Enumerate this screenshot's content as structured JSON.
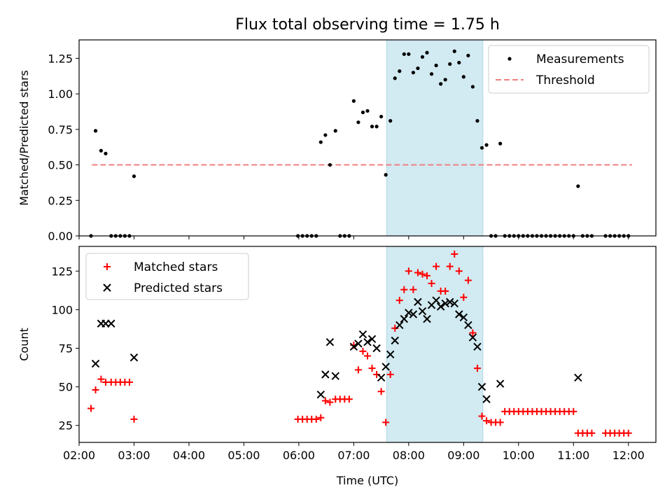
{
  "title": "Flux total observing time = 1.75 h",
  "chart_data": [
    {
      "type": "scatter",
      "ylabel": "Matched/Predicted stars",
      "xlabel": "",
      "xlim": [
        "02:00",
        "12:30"
      ],
      "ylim": [
        0,
        1.38
      ],
      "x_ticks": [
        "02:00",
        "03:00",
        "04:00",
        "05:00",
        "06:00",
        "07:00",
        "08:00",
        "09:00",
        "10:00",
        "11:00",
        "12:00"
      ],
      "y_ticks": [
        "0.00",
        "0.25",
        "0.50",
        "0.75",
        "1.00",
        "1.25"
      ],
      "shaded_region": [
        "07:36",
        "09:21"
      ],
      "shade_color": "#add8e6",
      "legend_position": "top-right",
      "threshold": {
        "name": "Threshold",
        "value": 0.5,
        "x_range": [
          "02:14",
          "12:04"
        ],
        "color": "#f08080"
      },
      "series": [
        {
          "name": "Measurements",
          "color": "#000000",
          "points": [
            [
              "02:13",
              0.0
            ],
            [
              "02:18",
              0.74
            ],
            [
              "02:24",
              0.6
            ],
            [
              "02:29",
              0.58
            ],
            [
              "02:35",
              0.0
            ],
            [
              "02:40",
              0.0
            ],
            [
              "02:45",
              0.0
            ],
            [
              "02:50",
              0.0
            ],
            [
              "02:55",
              0.0
            ],
            [
              "03:00",
              0.42
            ],
            [
              "05:59",
              0.0
            ],
            [
              "06:04",
              0.0
            ],
            [
              "06:09",
              0.0
            ],
            [
              "06:14",
              0.0
            ],
            [
              "06:19",
              0.0
            ],
            [
              "06:24",
              0.66
            ],
            [
              "06:29",
              0.71
            ],
            [
              "06:34",
              0.5
            ],
            [
              "06:40",
              0.74
            ],
            [
              "06:45",
              0.0
            ],
            [
              "06:50",
              0.0
            ],
            [
              "06:55",
              0.0
            ],
            [
              "07:00",
              0.95
            ],
            [
              "07:05",
              0.8
            ],
            [
              "07:10",
              0.87
            ],
            [
              "07:15",
              0.88
            ],
            [
              "07:20",
              0.77
            ],
            [
              "07:25",
              0.77
            ],
            [
              "07:30",
              0.84
            ],
            [
              "07:35",
              0.43
            ],
            [
              "07:40",
              0.81
            ],
            [
              "07:45",
              1.11
            ],
            [
              "07:50",
              1.16
            ],
            [
              "07:55",
              1.28
            ],
            [
              "08:00",
              1.28
            ],
            [
              "08:05",
              1.15
            ],
            [
              "08:10",
              1.18
            ],
            [
              "08:15",
              1.26
            ],
            [
              "08:20",
              1.29
            ],
            [
              "08:25",
              1.14
            ],
            [
              "08:30",
              1.2
            ],
            [
              "08:35",
              1.07
            ],
            [
              "08:40",
              1.1
            ],
            [
              "08:45",
              1.21
            ],
            [
              "08:50",
              1.3
            ],
            [
              "08:55",
              1.22
            ],
            [
              "09:00",
              1.12
            ],
            [
              "09:05",
              1.27
            ],
            [
              "09:10",
              1.05
            ],
            [
              "09:15",
              0.81
            ],
            [
              "09:20",
              0.62
            ],
            [
              "09:25",
              0.64
            ],
            [
              "09:30",
              0.0
            ],
            [
              "09:35",
              0.0
            ],
            [
              "09:40",
              0.65
            ],
            [
              "09:45",
              0.0
            ],
            [
              "09:50",
              0.0
            ],
            [
              "09:55",
              0.0
            ],
            [
              "10:00",
              0.0
            ],
            [
              "10:05",
              0.0
            ],
            [
              "10:10",
              0.0
            ],
            [
              "10:15",
              0.0
            ],
            [
              "10:20",
              0.0
            ],
            [
              "10:25",
              0.0
            ],
            [
              "10:30",
              0.0
            ],
            [
              "10:35",
              0.0
            ],
            [
              "10:40",
              0.0
            ],
            [
              "10:45",
              0.0
            ],
            [
              "10:50",
              0.0
            ],
            [
              "10:55",
              0.0
            ],
            [
              "11:00",
              0.0
            ],
            [
              "11:05",
              0.35
            ],
            [
              "11:10",
              0.0
            ],
            [
              "11:15",
              0.0
            ],
            [
              "11:20",
              0.0
            ],
            [
              "11:35",
              0.0
            ],
            [
              "11:40",
              0.0
            ],
            [
              "11:45",
              0.0
            ],
            [
              "11:50",
              0.0
            ],
            [
              "11:55",
              0.0
            ],
            [
              "12:00",
              0.0
            ]
          ]
        }
      ]
    },
    {
      "type": "scatter",
      "ylabel": "Count",
      "xlabel": "Time (UTC)",
      "xlim": [
        "02:00",
        "12:30"
      ],
      "ylim": [
        14,
        141
      ],
      "x_ticks": [
        "02:00",
        "03:00",
        "04:00",
        "05:00",
        "06:00",
        "07:00",
        "08:00",
        "09:00",
        "10:00",
        "11:00",
        "12:00"
      ],
      "y_ticks": [
        "25",
        "50",
        "75",
        "100",
        "125"
      ],
      "shaded_region": [
        "07:36",
        "09:21"
      ],
      "shade_color": "#add8e6",
      "legend_position": "top-left",
      "series": [
        {
          "name": "Matched stars",
          "marker": "plus",
          "color": "#ff0000",
          "points": [
            [
              "02:13",
              36
            ],
            [
              "02:18",
              48
            ],
            [
              "02:24",
              55
            ],
            [
              "02:29",
              53
            ],
            [
              "02:35",
              53
            ],
            [
              "02:40",
              53
            ],
            [
              "02:45",
              53
            ],
            [
              "02:50",
              53
            ],
            [
              "02:55",
              53
            ],
            [
              "03:00",
              29
            ],
            [
              "05:59",
              29
            ],
            [
              "06:04",
              29
            ],
            [
              "06:09",
              29
            ],
            [
              "06:14",
              29
            ],
            [
              "06:19",
              29
            ],
            [
              "06:24",
              30
            ],
            [
              "06:29",
              41
            ],
            [
              "06:34",
              40
            ],
            [
              "06:40",
              42
            ],
            [
              "06:45",
              42
            ],
            [
              "06:50",
              42
            ],
            [
              "06:55",
              42
            ],
            [
              "07:00",
              77
            ],
            [
              "07:05",
              61
            ],
            [
              "07:10",
              73
            ],
            [
              "07:15",
              70
            ],
            [
              "07:20",
              62
            ],
            [
              "07:25",
              58
            ],
            [
              "07:30",
              47
            ],
            [
              "07:35",
              27
            ],
            [
              "07:40",
              58
            ],
            [
              "07:45",
              88
            ],
            [
              "07:50",
              106
            ],
            [
              "07:55",
              113
            ],
            [
              "08:00",
              125
            ],
            [
              "08:05",
              113
            ],
            [
              "08:10",
              124
            ],
            [
              "08:15",
              123
            ],
            [
              "08:20",
              122
            ],
            [
              "08:25",
              117
            ],
            [
              "08:30",
              128
            ],
            [
              "08:35",
              112
            ],
            [
              "08:40",
              112
            ],
            [
              "08:45",
              128
            ],
            [
              "08:50",
              136
            ],
            [
              "08:55",
              125
            ],
            [
              "09:00",
              108
            ],
            [
              "09:05",
              119
            ],
            [
              "09:10",
              85
            ],
            [
              "09:15",
              62
            ],
            [
              "09:20",
              31
            ],
            [
              "09:25",
              28
            ],
            [
              "09:30",
              27
            ],
            [
              "09:35",
              27
            ],
            [
              "09:40",
              27
            ],
            [
              "09:45",
              34
            ],
            [
              "09:50",
              34
            ],
            [
              "09:55",
              34
            ],
            [
              "10:00",
              34
            ],
            [
              "10:05",
              34
            ],
            [
              "10:10",
              34
            ],
            [
              "10:15",
              34
            ],
            [
              "10:20",
              34
            ],
            [
              "10:25",
              34
            ],
            [
              "10:30",
              34
            ],
            [
              "10:35",
              34
            ],
            [
              "10:40",
              34
            ],
            [
              "10:45",
              34
            ],
            [
              "10:50",
              34
            ],
            [
              "10:55",
              34
            ],
            [
              "11:00",
              34
            ],
            [
              "11:05",
              20
            ],
            [
              "11:10",
              20
            ],
            [
              "11:15",
              20
            ],
            [
              "11:20",
              20
            ],
            [
              "11:35",
              20
            ],
            [
              "11:40",
              20
            ],
            [
              "11:45",
              20
            ],
            [
              "11:50",
              20
            ],
            [
              "11:55",
              20
            ],
            [
              "12:00",
              20
            ]
          ]
        },
        {
          "name": "Predicted stars",
          "marker": "x",
          "color": "#000000",
          "points": [
            [
              "02:18",
              65
            ],
            [
              "02:24",
              91
            ],
            [
              "02:29",
              91
            ],
            [
              "02:35",
              91
            ],
            [
              "03:00",
              69
            ],
            [
              "06:24",
              45
            ],
            [
              "06:29",
              58
            ],
            [
              "06:34",
              79
            ],
            [
              "06:40",
              57
            ],
            [
              "07:00",
              76
            ],
            [
              "07:05",
              78
            ],
            [
              "07:10",
              84
            ],
            [
              "07:15",
              79
            ],
            [
              "07:20",
              81
            ],
            [
              "07:25",
              75
            ],
            [
              "07:30",
              56
            ],
            [
              "07:35",
              63
            ],
            [
              "07:40",
              71
            ],
            [
              "07:45",
              80
            ],
            [
              "07:50",
              90
            ],
            [
              "07:55",
              94
            ],
            [
              "08:00",
              98
            ],
            [
              "08:05",
              97
            ],
            [
              "08:10",
              105
            ],
            [
              "08:15",
              99
            ],
            [
              "08:20",
              94
            ],
            [
              "08:25",
              103
            ],
            [
              "08:30",
              106
            ],
            [
              "08:35",
              102
            ],
            [
              "08:40",
              104
            ],
            [
              "08:45",
              105
            ],
            [
              "08:50",
              104
            ],
            [
              "08:55",
              97
            ],
            [
              "09:00",
              95
            ],
            [
              "09:05",
              90
            ],
            [
              "09:10",
              82
            ],
            [
              "09:15",
              76
            ],
            [
              "09:20",
              50
            ],
            [
              "09:25",
              42
            ],
            [
              "09:40",
              52
            ],
            [
              "11:05",
              56
            ]
          ]
        }
      ]
    }
  ]
}
